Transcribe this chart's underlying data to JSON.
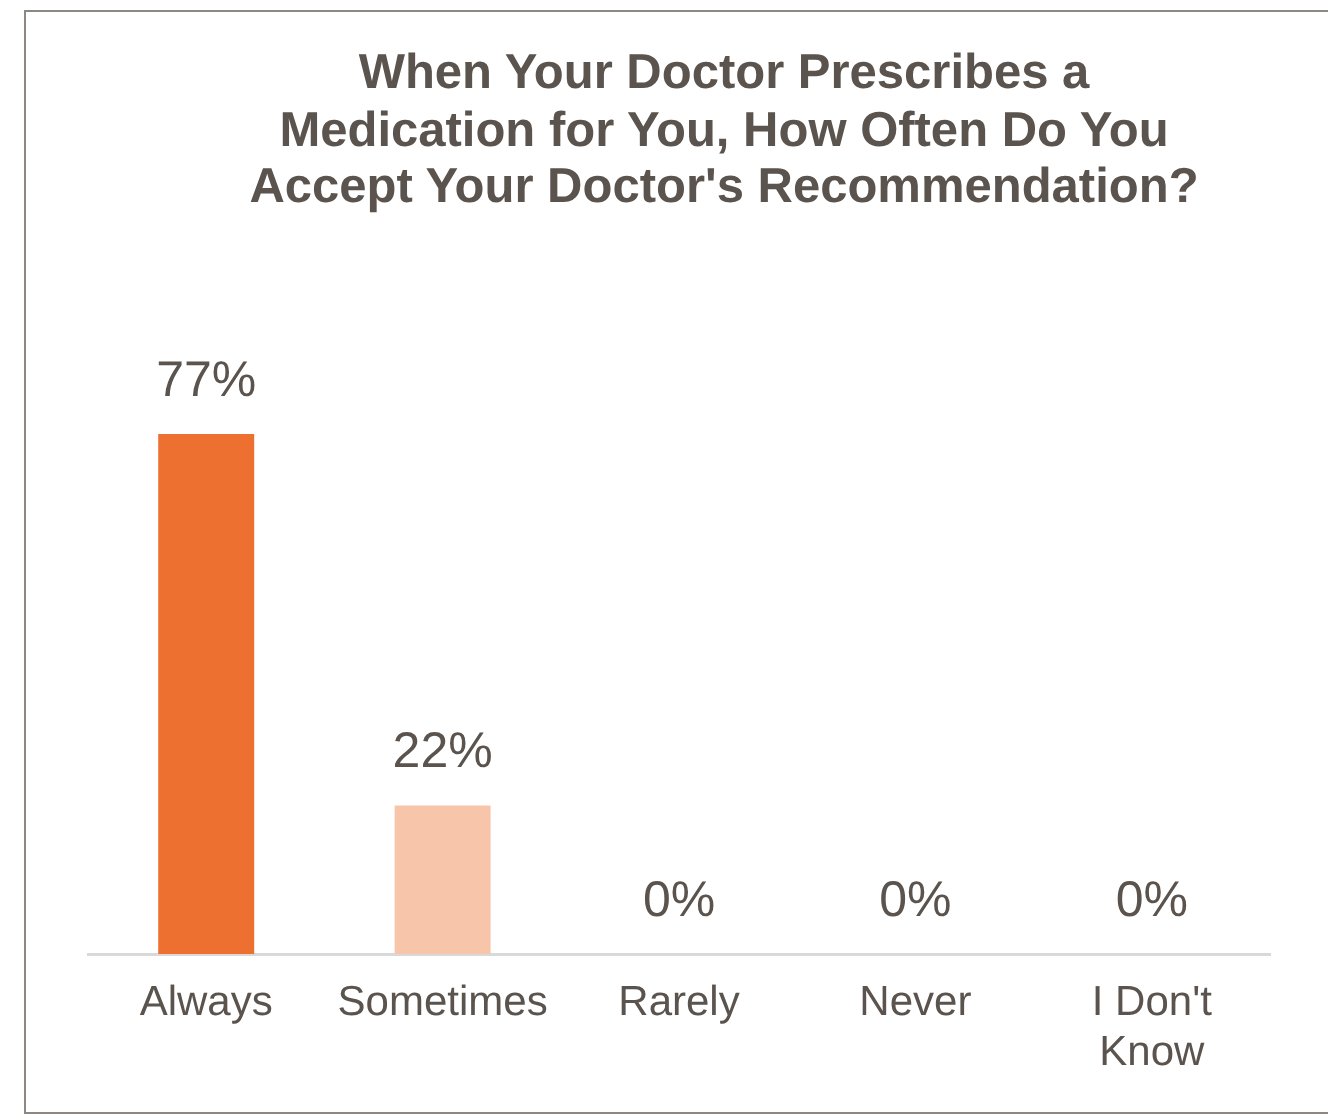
{
  "chart_data": {
    "type": "bar",
    "title": "When Your Doctor Prescribes a Medication for You, How Often Do You Accept Your Doctor's Recommendation?",
    "categories": [
      "Always",
      "Sometimes",
      "Rarely",
      "Never",
      "I Don't Know"
    ],
    "values": [
      77,
      22,
      0,
      0,
      0
    ],
    "colors": [
      "#ed7031",
      "#f7c6aa",
      "#f2a070",
      "#f9dccb",
      "#fbe9df"
    ],
    "value_labels": [
      "77%",
      "22%",
      "0%",
      "0%",
      "0%"
    ]
  }
}
